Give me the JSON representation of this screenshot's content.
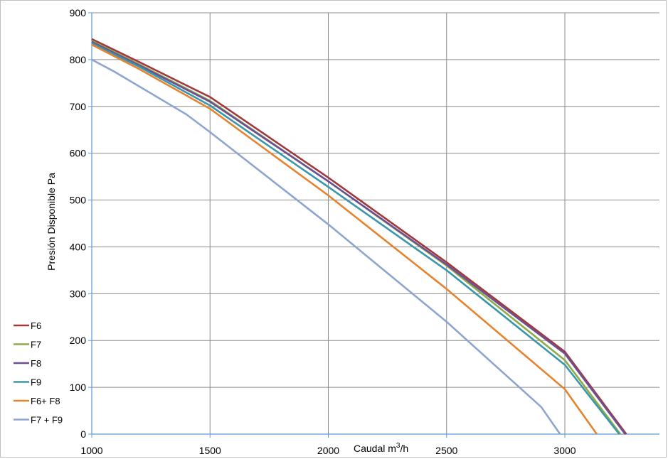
{
  "chart_data": {
    "type": "line",
    "title": "",
    "xlabel": "Caudal m³/h",
    "xlabel_base": "Caudal m",
    "xlabel_sup": "3",
    "xlabel_tail": "/h",
    "ylabel": "Presión Disponible Pa",
    "xlim": [
      1000,
      3400
    ],
    "ylim": [
      0,
      900
    ],
    "xticks": [
      "1000",
      "1500",
      "2000",
      "2500",
      "3000"
    ],
    "yticks": [
      "0",
      "100",
      "200",
      "300",
      "400",
      "500",
      "600",
      "700",
      "800",
      "900"
    ],
    "grid": true,
    "legend_position": "left-bottom",
    "series": [
      {
        "name": "F6",
        "color": "#a0393b",
        "x": [
          1000,
          1200,
          1500,
          2000,
          2500,
          3000,
          3260
        ],
        "y": [
          844,
          795,
          720,
          548,
          367,
          176,
          0
        ]
      },
      {
        "name": "F7",
        "color": "#8faa48",
        "x": [
          1000,
          1200,
          1500,
          2000,
          2500,
          3000,
          3235
        ],
        "y": [
          840,
          790,
          712,
          540,
          360,
          158,
          0
        ]
      },
      {
        "name": "F8",
        "color": "#6d4f94",
        "x": [
          1000,
          1200,
          1500,
          2000,
          2500,
          3000,
          3255
        ],
        "y": [
          838,
          788,
          710,
          540,
          362,
          172,
          0
        ]
      },
      {
        "name": "F9",
        "color": "#3a97ab",
        "x": [
          1000,
          1200,
          1500,
          2000,
          2500,
          3000,
          3230
        ],
        "y": [
          835,
          785,
          702,
          528,
          350,
          148,
          0
        ]
      },
      {
        "name": "F6+ F8",
        "color": "#e5832f",
        "x": [
          1000,
          1200,
          1500,
          2000,
          2500,
          3000,
          3135
        ],
        "y": [
          832,
          780,
          695,
          510,
          310,
          96,
          0
        ]
      },
      {
        "name": "F7 + F9",
        "color": "#8ea5cf",
        "x": [
          1000,
          1100,
          1400,
          1500,
          2000,
          2500,
          2900,
          2980
        ],
        "y": [
          800,
          773,
          683,
          645,
          448,
          240,
          58,
          0
        ]
      }
    ]
  }
}
